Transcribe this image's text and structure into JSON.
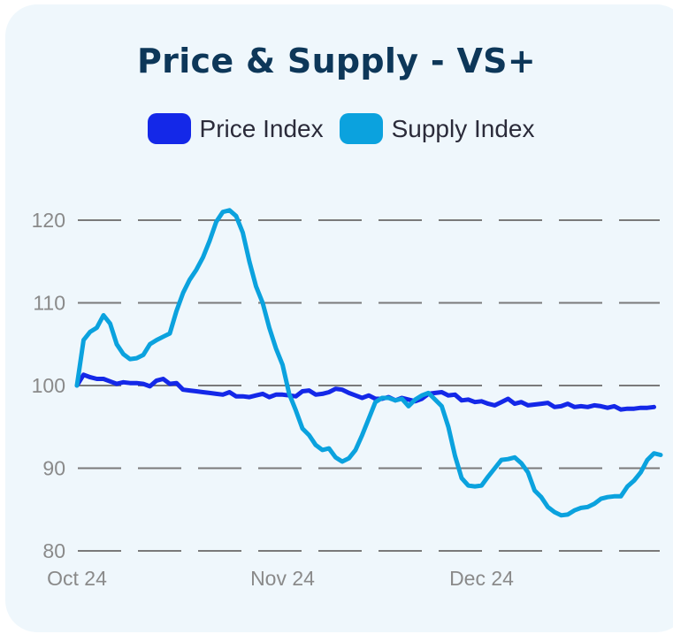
{
  "chart_data": {
    "type": "line",
    "title": "Price & Supply - VS+",
    "xlabel": "",
    "ylabel": "",
    "ylim": [
      80,
      122
    ],
    "yticks": [
      80,
      90,
      100,
      110,
      120
    ],
    "xtick_labels": [
      {
        "label": "Oct 24",
        "day": 0
      },
      {
        "label": "Nov 24",
        "day": 31
      },
      {
        "label": "Dec 24",
        "day": 61
      }
    ],
    "grid": true,
    "legend_position": "top-center",
    "series": [
      {
        "name": "Price Index",
        "color": "#1428e8",
        "points": [
          [
            0,
            100
          ],
          [
            1,
            101.3
          ],
          [
            2,
            101
          ],
          [
            3,
            100.8
          ],
          [
            4,
            100.8
          ],
          [
            5,
            100.5
          ],
          [
            6,
            100.2
          ],
          [
            7,
            100.4
          ],
          [
            8,
            100.3
          ],
          [
            9,
            100.3
          ],
          [
            10,
            100.2
          ],
          [
            11,
            99.9
          ],
          [
            12,
            100.6
          ],
          [
            13,
            100.8
          ],
          [
            14,
            100.2
          ],
          [
            15,
            100.3
          ],
          [
            16,
            99.5
          ],
          [
            17,
            99.4
          ],
          [
            18,
            99.3
          ],
          [
            19,
            99.2
          ],
          [
            20,
            99.1
          ],
          [
            21,
            99
          ],
          [
            22,
            98.9
          ],
          [
            23,
            99.2
          ],
          [
            24,
            98.7
          ],
          [
            25,
            98.7
          ],
          [
            26,
            98.6
          ],
          [
            27,
            98.8
          ],
          [
            28,
            99
          ],
          [
            29,
            98.6
          ],
          [
            30,
            98.9
          ],
          [
            31,
            98.9
          ],
          [
            32,
            98.8
          ],
          [
            33,
            98.7
          ],
          [
            34,
            99.3
          ],
          [
            35,
            99.4
          ],
          [
            36,
            98.9
          ],
          [
            37,
            99
          ],
          [
            38,
            99.2
          ],
          [
            39,
            99.6
          ],
          [
            40,
            99.5
          ],
          [
            41,
            99.1
          ],
          [
            42,
            98.8
          ],
          [
            43,
            98.5
          ],
          [
            44,
            98.8
          ],
          [
            45,
            98.4
          ],
          [
            46,
            98.4
          ],
          [
            47,
            98.6
          ],
          [
            48,
            98.2
          ],
          [
            49,
            98.5
          ],
          [
            50,
            98.3
          ],
          [
            51,
            98.1
          ],
          [
            52,
            98.4
          ],
          [
            53,
            99
          ],
          [
            54,
            99.1
          ],
          [
            55,
            99.2
          ],
          [
            56,
            98.8
          ],
          [
            57,
            98.9
          ],
          [
            58,
            98.2
          ],
          [
            59,
            98.3
          ],
          [
            60,
            98
          ],
          [
            61,
            98.1
          ],
          [
            62,
            97.8
          ],
          [
            63,
            97.6
          ],
          [
            64,
            98
          ],
          [
            65,
            98.4
          ],
          [
            66,
            97.8
          ],
          [
            67,
            98
          ],
          [
            68,
            97.6
          ],
          [
            69,
            97.7
          ],
          [
            70,
            97.8
          ],
          [
            71,
            97.9
          ],
          [
            72,
            97.4
          ],
          [
            73,
            97.5
          ],
          [
            74,
            97.8
          ],
          [
            75,
            97.4
          ],
          [
            76,
            97.5
          ],
          [
            77,
            97.4
          ],
          [
            78,
            97.6
          ],
          [
            79,
            97.5
          ],
          [
            80,
            97.3
          ],
          [
            81,
            97.5
          ],
          [
            82,
            97.1
          ],
          [
            83,
            97.2
          ],
          [
            84,
            97.2
          ],
          [
            85,
            97.3
          ],
          [
            86,
            97.3
          ],
          [
            87,
            97.4
          ]
        ]
      },
      {
        "name": "Supply Index",
        "color": "#0ba2de",
        "points": [
          [
            0,
            100
          ],
          [
            1,
            105.5
          ],
          [
            2,
            106.5
          ],
          [
            3,
            107
          ],
          [
            4,
            108.5
          ],
          [
            5,
            107.5
          ],
          [
            6,
            105
          ],
          [
            7,
            103.8
          ],
          [
            8,
            103.2
          ],
          [
            9,
            103.3
          ],
          [
            10,
            103.7
          ],
          [
            11,
            105
          ],
          [
            12,
            105.5
          ],
          [
            13,
            105.9
          ],
          [
            14,
            106.3
          ],
          [
            15,
            109
          ],
          [
            16,
            111.2
          ],
          [
            17,
            112.8
          ],
          [
            18,
            114
          ],
          [
            19,
            115.5
          ],
          [
            20,
            117.5
          ],
          [
            21,
            119.8
          ],
          [
            22,
            121
          ],
          [
            23,
            121.2
          ],
          [
            24,
            120.5
          ],
          [
            25,
            118.5
          ],
          [
            26,
            115
          ],
          [
            27,
            112
          ],
          [
            28,
            110
          ],
          [
            29,
            107
          ],
          [
            30,
            104.5
          ],
          [
            31,
            102.5
          ],
          [
            32,
            99
          ],
          [
            33,
            97
          ],
          [
            34,
            94.8
          ],
          [
            35,
            94
          ],
          [
            36,
            92.8
          ],
          [
            37,
            92.2
          ],
          [
            38,
            92.4
          ],
          [
            39,
            91.3
          ],
          [
            40,
            90.8
          ],
          [
            41,
            91.2
          ],
          [
            42,
            92.2
          ],
          [
            43,
            94
          ],
          [
            44,
            96
          ],
          [
            45,
            98
          ],
          [
            46,
            98.5
          ],
          [
            47,
            98.5
          ],
          [
            48,
            98.2
          ],
          [
            49,
            98.4
          ],
          [
            50,
            97.5
          ],
          [
            51,
            98.3
          ],
          [
            52,
            98.8
          ],
          [
            53,
            99.1
          ],
          [
            54,
            98.3
          ],
          [
            55,
            97.5
          ],
          [
            56,
            95
          ],
          [
            57,
            91.5
          ],
          [
            58,
            88.8
          ],
          [
            59,
            87.9
          ],
          [
            60,
            87.8
          ],
          [
            61,
            87.9
          ],
          [
            62,
            89
          ],
          [
            63,
            90
          ],
          [
            64,
            91
          ],
          [
            65,
            91.1
          ],
          [
            66,
            91.3
          ],
          [
            67,
            90.6
          ],
          [
            68,
            89.5
          ],
          [
            69,
            87.3
          ],
          [
            70,
            86.5
          ],
          [
            71,
            85.3
          ],
          [
            72,
            84.7
          ],
          [
            73,
            84.3
          ],
          [
            74,
            84.4
          ],
          [
            75,
            84.9
          ],
          [
            76,
            85.2
          ],
          [
            77,
            85.3
          ],
          [
            78,
            85.7
          ],
          [
            79,
            86.3
          ],
          [
            80,
            86.5
          ],
          [
            81,
            86.6
          ],
          [
            82,
            86.6
          ],
          [
            83,
            87.8
          ],
          [
            84,
            88.5
          ],
          [
            85,
            89.5
          ],
          [
            86,
            91
          ],
          [
            87,
            91.8
          ],
          [
            88,
            91.6
          ]
        ]
      }
    ]
  }
}
